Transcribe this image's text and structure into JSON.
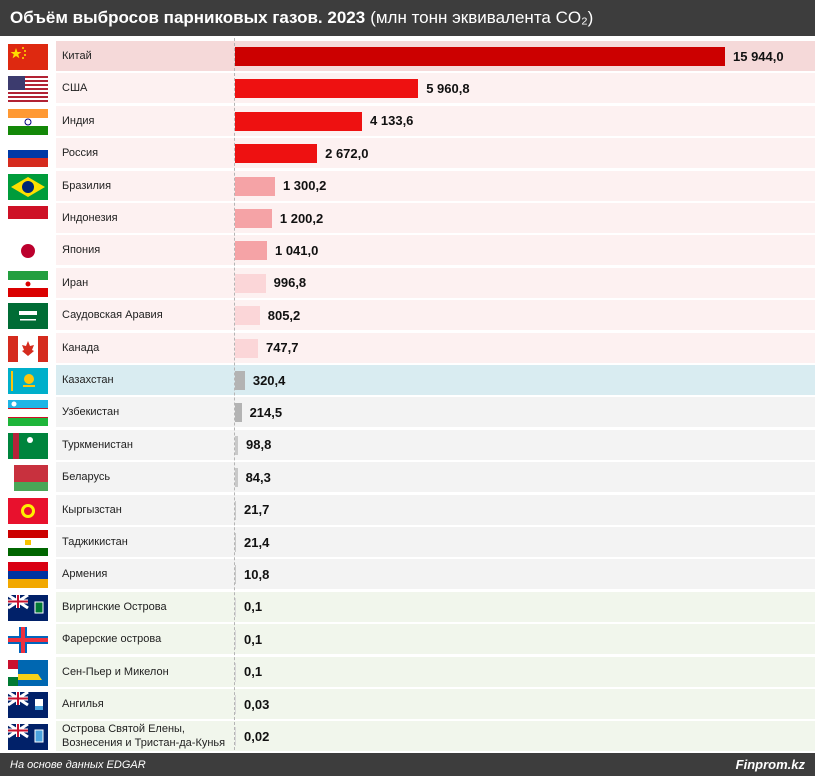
{
  "title_bold": "Объём выбросов парниковых газов. 2023",
  "title_unit": "(млн тонн эквивалента CO₂)",
  "footer": {
    "source": "На основе данных EDGAR",
    "brand": "Finprom.kz"
  },
  "colors": {
    "header_bg": "#3d3d3d",
    "level1": "#cc0000",
    "level2": "#ee1111",
    "level3": "#f5a3a6",
    "level4": "#fbd6d8",
    "level5": "#b3b3b3",
    "level6": "#c8c8c8"
  },
  "chart_data": {
    "type": "bar",
    "orientation": "horizontal",
    "title": "Объём выбросов парниковых газов. 2023",
    "subtitle": "(млн тонн эквивалента CO₂)",
    "xlabel": "",
    "ylabel": "",
    "grid": false,
    "categories": [
      "Китай",
      "США",
      "Индия",
      "Россия",
      "Бразилия",
      "Индонезия",
      "Япония",
      "Иран",
      "Саудовская Аравия",
      "Канада",
      "Казахстан",
      "Узбекистан",
      "Туркменистан",
      "Беларусь",
      "Кыргызстан",
      "Таджикистан",
      "Армения",
      "Виргинские Острова",
      "Фарерские острова",
      "Сен-Пьер и Микелон",
      "Ангилья",
      "Острова Святой Елены, Вознесения и Тристан-да-Кунья"
    ],
    "values": [
      15944.0,
      5960.8,
      4133.6,
      2672.0,
      1300.2,
      1200.2,
      1041.0,
      996.8,
      805.2,
      747.7,
      320.4,
      214.5,
      98.8,
      84.3,
      21.7,
      21.4,
      10.8,
      0.1,
      0.1,
      0.1,
      0.03,
      0.02
    ],
    "value_labels": [
      "15 944,0",
      "5 960,8",
      "4 133,6",
      "2 672,0",
      "1 300,2",
      "1 200,2",
      "1 041,0",
      "996,8",
      "805,2",
      "747,7",
      "320,4",
      "214,5",
      "98,8",
      "84,3",
      "21,7",
      "21,4",
      "10,8",
      "0,1",
      "0,1",
      "0,1",
      "0,03",
      "0,02"
    ],
    "flags": [
      "china-flag",
      "usa-flag",
      "india-flag",
      "russia-flag",
      "brazil-flag",
      "indonesia-flag",
      "japan-flag",
      "iran-flag",
      "saudi-arabia-flag",
      "canada-flag",
      "kazakhstan-flag",
      "uzbekistan-flag",
      "turkmenistan-flag",
      "belarus-flag",
      "kyrgyzstan-flag",
      "tajikistan-flag",
      "armenia-flag",
      "british-virgin-islands-flag",
      "faroe-islands-flag",
      "saint-pierre-miquelon-flag",
      "anguilla-flag",
      "saint-helena-flag"
    ],
    "color_levels": [
      1,
      2,
      2,
      2,
      3,
      3,
      3,
      4,
      4,
      4,
      5,
      5,
      6,
      6,
      6,
      6,
      6,
      7,
      7,
      7,
      7,
      7
    ],
    "highlight": [
      "Китай",
      "Казахстан"
    ]
  }
}
